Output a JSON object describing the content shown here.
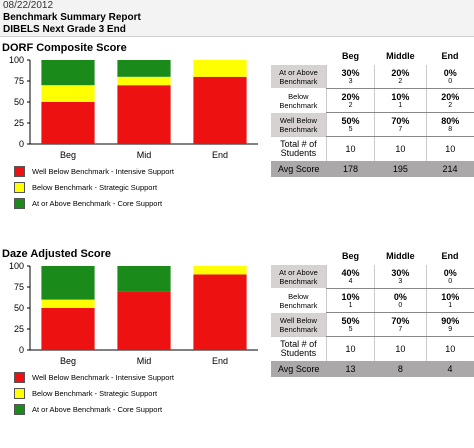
{
  "header": {
    "date": "08/22/2012",
    "title": "Benchmark Summary Report",
    "subtitle": "DIBELS Next Grade 3 End"
  },
  "colors": {
    "well_below": "#ee1111",
    "below": "#ffff00",
    "at_above": "#1a8a1a"
  },
  "legend": [
    {
      "label": "Well Below Benchmark - Intensive Support",
      "color": "#ee1111"
    },
    {
      "label": "Below Benchmark - Strategic Support",
      "color": "#ffff00"
    },
    {
      "label": "At or Above Benchmark - Core Support",
      "color": "#1a8a1a"
    }
  ],
  "tables": [
    {
      "columns": [
        "Beg",
        "Middle",
        "End"
      ],
      "rows": [
        {
          "label": "At or Above Benchmark",
          "pct": [
            "30%",
            "20%",
            "0%"
          ],
          "count": [
            "3",
            "2",
            "0"
          ]
        },
        {
          "label": "Below Benchmark",
          "pct": [
            "20%",
            "10%",
            "20%"
          ],
          "count": [
            "2",
            "1",
            "2"
          ]
        },
        {
          "label": "Well Below Benchmark",
          "pct": [
            "50%",
            "70%",
            "80%"
          ],
          "count": [
            "5",
            "7",
            "8"
          ]
        }
      ],
      "total_label": "Total # of Students",
      "total": [
        "10",
        "10",
        "10"
      ],
      "avg_label": "Avg Score",
      "avg": [
        "178",
        "195",
        "214"
      ]
    },
    {
      "columns": [
        "Beg",
        "Middle",
        "End"
      ],
      "rows": [
        {
          "label": "At or Above Benchmark",
          "pct": [
            "40%",
            "30%",
            "0%"
          ],
          "count": [
            "4",
            "3",
            "0"
          ]
        },
        {
          "label": "Below Benchmark",
          "pct": [
            "10%",
            "0%",
            "10%"
          ],
          "count": [
            "1",
            "0",
            "1"
          ]
        },
        {
          "label": "Well Below Benchmark",
          "pct": [
            "50%",
            "70%",
            "90%"
          ],
          "count": [
            "5",
            "7",
            "9"
          ]
        }
      ],
      "total_label": "Total # of Students",
      "total": [
        "10",
        "10",
        "10"
      ],
      "avg_label": "Avg Score",
      "avg": [
        "13",
        "8",
        "4"
      ]
    }
  ],
  "chart_data": [
    {
      "type": "bar",
      "stacked": true,
      "title": "DORF Composite Score",
      "categories": [
        "Beg",
        "Mid",
        "End"
      ],
      "series": [
        {
          "key": "well_below",
          "values": [
            50,
            70,
            80
          ]
        },
        {
          "key": "below",
          "values": [
            20,
            10,
            20
          ]
        },
        {
          "key": "at_above",
          "values": [
            30,
            20,
            0
          ]
        }
      ],
      "ylim": [
        0,
        100
      ],
      "yticks": [
        "0",
        "25",
        "50",
        "75",
        "100"
      ]
    },
    {
      "type": "bar",
      "stacked": true,
      "title": "Daze Adjusted Score",
      "categories": [
        "Beg",
        "Mid",
        "End"
      ],
      "series": [
        {
          "key": "well_below",
          "values": [
            50,
            70,
            90
          ]
        },
        {
          "key": "below",
          "values": [
            10,
            0,
            10
          ]
        },
        {
          "key": "at_above",
          "values": [
            40,
            30,
            0
          ]
        }
      ],
      "ylim": [
        0,
        100
      ],
      "yticks": [
        "0",
        "25",
        "50",
        "75",
        "100"
      ]
    }
  ]
}
